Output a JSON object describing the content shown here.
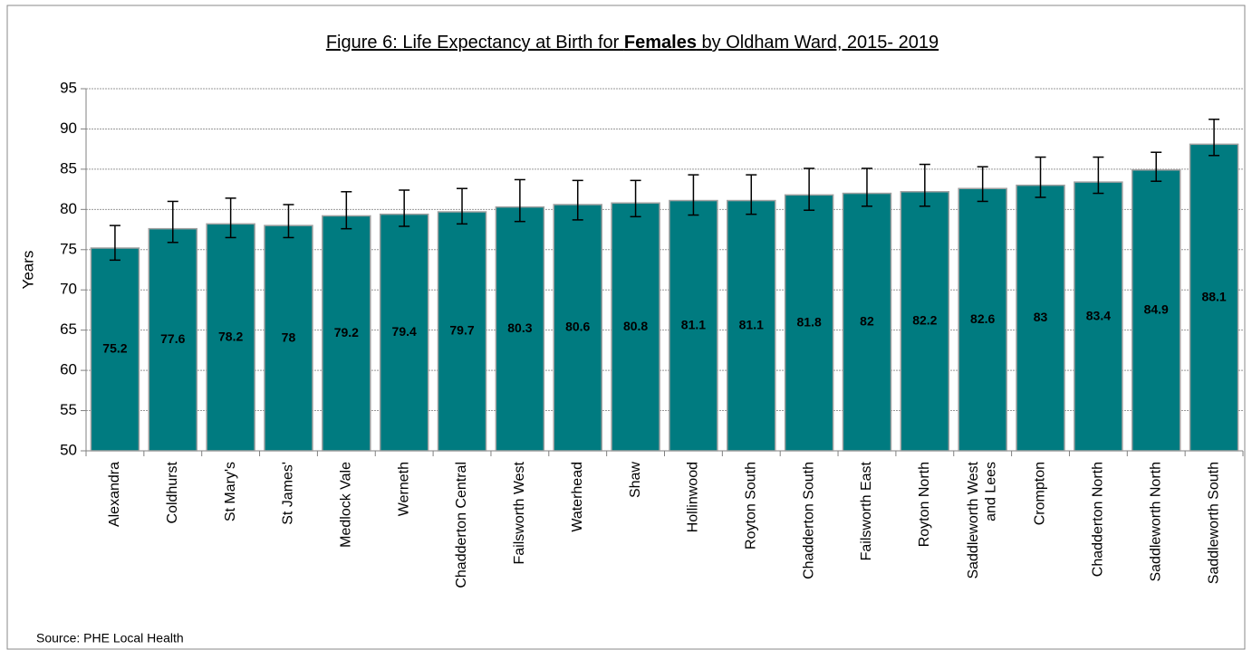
{
  "chart_data": {
    "type": "bar",
    "title_parts": [
      "Figure 6: Life Expectancy at Birth for ",
      "Females",
      " by Oldham Ward, 2015- 2019"
    ],
    "y_label": "Years",
    "source": "Source: PHE Local Health",
    "categories": [
      "Alexandra",
      "Coldhurst",
      "St Mary's",
      "St James'",
      "Medlock Vale",
      "Werneth",
      "Chadderton Central",
      "Failsworth West",
      "Waterhead",
      "Shaw",
      "Hollinwood",
      "Royton South",
      "Chadderton South",
      "Failsworth East",
      "Royton North",
      "Saddleworth West and Lees",
      "Crompton",
      "Chadderton North",
      "Saddleworth North",
      "Saddleworth South"
    ],
    "values": [
      75.2,
      77.6,
      78.2,
      78,
      79.2,
      79.4,
      79.7,
      80.3,
      80.6,
      80.8,
      81.1,
      81.1,
      81.8,
      82,
      82.2,
      82.6,
      83,
      83.4,
      84.9,
      88.1
    ],
    "lower": [
      73.7,
      75.9,
      76.5,
      76.5,
      77.6,
      77.9,
      78.2,
      78.5,
      78.7,
      79.1,
      79.3,
      79.4,
      79.9,
      80.4,
      80.4,
      81.0,
      81.5,
      82.0,
      83.5,
      86.7
    ],
    "upper": [
      78.0,
      81.0,
      81.4,
      80.6,
      82.2,
      82.4,
      82.6,
      83.7,
      83.6,
      83.6,
      84.3,
      84.3,
      85.1,
      85.1,
      85.6,
      85.3,
      86.5,
      86.5,
      87.1,
      91.2
    ],
    "color": "#007b80",
    "ylim": [
      50,
      95
    ],
    "yticks": [
      50,
      55,
      60,
      65,
      70,
      75,
      80,
      85,
      90,
      95
    ],
    "grid": true
  }
}
